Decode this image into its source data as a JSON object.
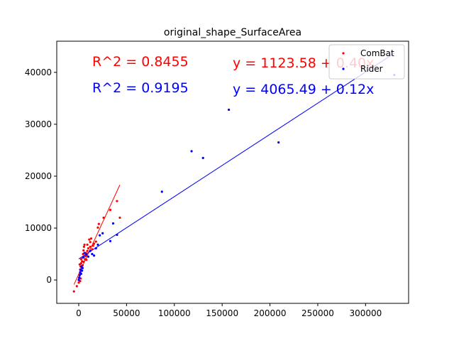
{
  "chart_data": {
    "type": "scatter",
    "title": "original_shape_SurfaceArea",
    "xlabel": "",
    "ylabel": "",
    "xlim": [
      -23000,
      345000
    ],
    "ylim": [
      -4500,
      46000
    ],
    "xticks": [
      0,
      50000,
      100000,
      150000,
      200000,
      250000,
      300000
    ],
    "yticks": [
      0,
      10000,
      20000,
      30000,
      40000
    ],
    "grid": false,
    "legend_position": "top-right",
    "annotations": {
      "r2_combat": "R^2 = 0.8455",
      "r2_rider": "R^2 = 0.9195",
      "eq_combat": "y = 1123.58 + 0.40x",
      "eq_rider": "y = 4065.49 + 0.12x"
    },
    "series": [
      {
        "name": "ComBat",
        "color": "#ff0000",
        "fit": {
          "intercept": 1123.58,
          "slope": 0.4,
          "x_range": [
            -5000,
            43000
          ]
        },
        "points": [
          [
            -5000,
            -2200
          ],
          [
            -2000,
            -1200
          ],
          [
            0,
            -500
          ],
          [
            500,
            500
          ],
          [
            1000,
            1200
          ],
          [
            1500,
            2000
          ],
          [
            2000,
            2600
          ],
          [
            2500,
            3200
          ],
          [
            3000,
            2400
          ],
          [
            3500,
            3600
          ],
          [
            4000,
            4300
          ],
          [
            4500,
            5000
          ],
          [
            5000,
            5700
          ],
          [
            5500,
            6400
          ],
          [
            6000,
            6800
          ],
          [
            6500,
            4000
          ],
          [
            7000,
            4600
          ],
          [
            8000,
            3900
          ],
          [
            9000,
            5600
          ],
          [
            10000,
            6100
          ],
          [
            11000,
            7800
          ],
          [
            12000,
            7300
          ],
          [
            13000,
            8000
          ],
          [
            14000,
            5900
          ],
          [
            15000,
            6600
          ],
          [
            16000,
            7000
          ],
          [
            18000,
            7400
          ],
          [
            20000,
            10100
          ],
          [
            21000,
            10800
          ],
          [
            26000,
            12000
          ],
          [
            33000,
            13500
          ],
          [
            40000,
            15200
          ],
          [
            43000,
            12000
          ],
          [
            1000,
            3000
          ],
          [
            2000,
            300
          ],
          [
            3000,
            1800
          ],
          [
            1500,
            -200
          ],
          [
            4000,
            2800
          ],
          [
            2500,
            4000
          ],
          [
            5000,
            3500
          ],
          [
            7500,
            5200
          ],
          [
            9000,
            6800
          ],
          [
            12000,
            6400
          ]
        ]
      },
      {
        "name": "Rider",
        "color": "#0000ff",
        "fit": {
          "intercept": 4065.49,
          "slope": 0.12,
          "x_range": [
            0,
            330000
          ]
        },
        "points": [
          [
            0,
            0
          ],
          [
            500,
            400
          ],
          [
            1000,
            900
          ],
          [
            1500,
            1500
          ],
          [
            2000,
            2000
          ],
          [
            2500,
            1200
          ],
          [
            3000,
            2600
          ],
          [
            3500,
            1800
          ],
          [
            4000,
            2300
          ],
          [
            5000,
            4400
          ],
          [
            6000,
            5200
          ],
          [
            8000,
            4900
          ],
          [
            10000,
            4500
          ],
          [
            12000,
            5600
          ],
          [
            14000,
            5000
          ],
          [
            16000,
            4700
          ],
          [
            18000,
            6100
          ],
          [
            20000,
            6800
          ],
          [
            22000,
            8600
          ],
          [
            25000,
            9000
          ],
          [
            33000,
            7500
          ],
          [
            36000,
            10900
          ],
          [
            40000,
            8700
          ],
          [
            87000,
            17000
          ],
          [
            118000,
            24800
          ],
          [
            130000,
            23500
          ],
          [
            157000,
            32800
          ],
          [
            209000,
            26500
          ],
          [
            330000,
            39500
          ]
        ]
      }
    ]
  }
}
